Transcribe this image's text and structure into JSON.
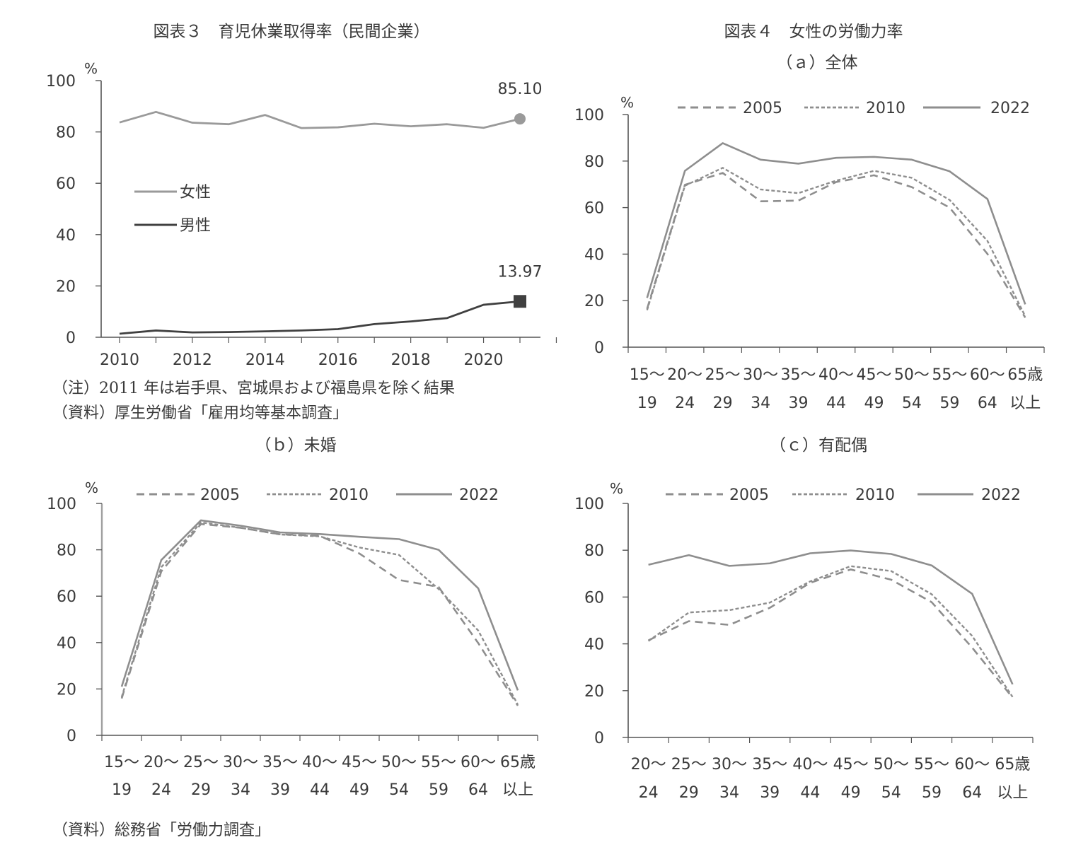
{
  "fig3": {
    "title": "図表３　育児休業取得率（民間企業）",
    "note": "（注）2011 年は岩手県、宮城県および福島県を除く結果",
    "source": "（資料）厚生労働省「雇用均等基本調査」"
  },
  "fig4": {
    "title": "図表４　女性の労働力率",
    "source": "（資料）総務省「労働力調査」"
  },
  "chart_data": [
    {
      "id": "fig3",
      "type": "line",
      "x": [
        2010,
        2011,
        2012,
        2013,
        2014,
        2015,
        2016,
        2017,
        2018,
        2019,
        2020,
        2021
      ],
      "xticks": [
        "2010",
        "2012",
        "2014",
        "2016",
        "2018",
        "2020"
      ],
      "ylim": [
        0,
        100
      ],
      "yticks": [
        "0",
        "20",
        "40",
        "60",
        "80",
        "100"
      ],
      "yunit": "%",
      "series": [
        {
          "name": "女性",
          "color": "#9a9a9a",
          "values": [
            83.7,
            87.8,
            83.6,
            83.0,
            86.6,
            81.5,
            81.8,
            83.2,
            82.2,
            83.0,
            81.6,
            85.1
          ],
          "end_label": "85.10",
          "end_marker": "circle"
        },
        {
          "name": "男性",
          "color": "#404040",
          "values": [
            1.38,
            2.63,
            1.89,
            2.03,
            2.3,
            2.65,
            3.16,
            5.14,
            6.16,
            7.48,
            12.65,
            13.97
          ],
          "end_label": "13.97",
          "end_marker": "square"
        }
      ],
      "legend": "middle-left",
      "grid": false
    },
    {
      "id": "fig4a",
      "type": "line",
      "subtitle": "（ａ）全体",
      "categories": [
        [
          "15～",
          "19"
        ],
        [
          "20～",
          "24"
        ],
        [
          "25～",
          "29"
        ],
        [
          "30～",
          "34"
        ],
        [
          "35～",
          "39"
        ],
        [
          "40～",
          "44"
        ],
        [
          "45～",
          "49"
        ],
        [
          "50～",
          "54"
        ],
        [
          "55～",
          "59"
        ],
        [
          "60～",
          "64"
        ],
        [
          "65歳",
          "以上"
        ]
      ],
      "ylim": [
        0,
        100
      ],
      "yticks": [
        "0",
        "20",
        "40",
        "60",
        "80",
        "100"
      ],
      "yunit": "%",
      "series": [
        {
          "name": "2005",
          "style": "dashed",
          "values": [
            16.5,
            69.8,
            74.9,
            62.7,
            63.0,
            71.0,
            73.9,
            68.8,
            60.0,
            40.1,
            12.7
          ]
        },
        {
          "name": "2010",
          "style": "dotted",
          "values": [
            15.9,
            69.4,
            77.1,
            67.8,
            66.2,
            71.6,
            75.8,
            72.8,
            63.3,
            45.7,
            13.3
          ]
        },
        {
          "name": "2022",
          "style": "solid",
          "values": [
            21.2,
            75.8,
            87.7,
            80.6,
            78.9,
            81.4,
            81.8,
            80.6,
            75.6,
            63.7,
            18.4
          ]
        }
      ],
      "legend": "top",
      "grid": false
    },
    {
      "id": "fig4b",
      "type": "line",
      "subtitle": "（ｂ）未婚",
      "categories": [
        [
          "15～",
          "19"
        ],
        [
          "20～",
          "24"
        ],
        [
          "25～",
          "29"
        ],
        [
          "30～",
          "34"
        ],
        [
          "35～",
          "39"
        ],
        [
          "40～",
          "44"
        ],
        [
          "45～",
          "49"
        ],
        [
          "50～",
          "54"
        ],
        [
          "55～",
          "59"
        ],
        [
          "60～",
          "64"
        ],
        [
          "65歳",
          "以上"
        ]
      ],
      "ylim": [
        0,
        100
      ],
      "yticks": [
        "0",
        "20",
        "40",
        "60",
        "80",
        "100"
      ],
      "yunit": "%",
      "series": [
        {
          "name": "2005",
          "style": "dashed",
          "values": [
            15.9,
            70.7,
            91.1,
            89.5,
            86.7,
            86.0,
            78.4,
            67.0,
            64.0,
            39.8,
            12.8
          ]
        },
        {
          "name": "2010",
          "style": "dotted",
          "values": [
            16.5,
            72.5,
            91.8,
            89.5,
            86.6,
            85.8,
            81.0,
            77.8,
            63.1,
            45.2,
            13.2
          ]
        },
        {
          "name": "2022",
          "style": "solid",
          "values": [
            21.0,
            75.6,
            92.7,
            90.4,
            87.5,
            86.8,
            85.6,
            84.6,
            80.0,
            63.4,
            19.4
          ]
        }
      ],
      "legend": "top",
      "grid": false
    },
    {
      "id": "fig4c",
      "type": "line",
      "subtitle": "（ｃ）有配偶",
      "categories": [
        [
          "20～",
          "24"
        ],
        [
          "25～",
          "29"
        ],
        [
          "30～",
          "34"
        ],
        [
          "35～",
          "39"
        ],
        [
          "40～",
          "44"
        ],
        [
          "45～",
          "49"
        ],
        [
          "50～",
          "54"
        ],
        [
          "55～",
          "59"
        ],
        [
          "60～",
          "64"
        ],
        [
          "65歳",
          "以上"
        ]
      ],
      "ylim": [
        0,
        100
      ],
      "yticks": [
        "0",
        "20",
        "40",
        "60",
        "80",
        "100"
      ],
      "yunit": "%",
      "series": [
        {
          "name": "2005",
          "style": "dashed",
          "values": [
            41.5,
            49.7,
            48.1,
            55.4,
            66.1,
            71.8,
            67.4,
            57.8,
            38.4,
            17.0
          ]
        },
        {
          "name": "2010",
          "style": "dotted",
          "values": [
            41.2,
            53.4,
            54.4,
            57.6,
            66.7,
            73.2,
            71.1,
            61.2,
            43.4,
            17.3
          ]
        },
        {
          "name": "2022",
          "style": "solid",
          "values": [
            73.8,
            77.9,
            73.3,
            74.4,
            78.7,
            79.9,
            78.4,
            73.5,
            61.4,
            22.7
          ]
        }
      ],
      "legend": "top",
      "grid": false
    }
  ]
}
